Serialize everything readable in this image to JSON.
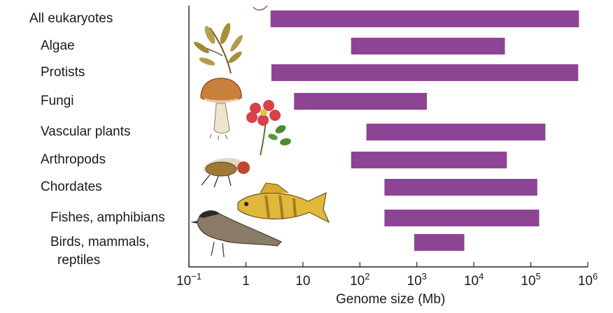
{
  "chart_data": {
    "type": "bar",
    "orientation": "horizontal-range",
    "xscale": "log",
    "xlabel": "Genome size (Mb)",
    "xlim": [
      0.1,
      1000000
    ],
    "grid": false,
    "bar_color": "#8e4494",
    "categories": [
      {
        "label": "All eukaryotes",
        "indent": 0,
        "range": [
          2.7,
          700000
        ]
      },
      {
        "label": "Algae",
        "indent": 1,
        "range": [
          70,
          35000
        ]
      },
      {
        "label": "Protists",
        "indent": 1,
        "range": [
          2.8,
          680000
        ]
      },
      {
        "label": "Fungi",
        "indent": 1,
        "range": [
          7,
          1500
        ]
      },
      {
        "label": "Vascular plants",
        "indent": 1,
        "range": [
          130,
          180000
        ]
      },
      {
        "label": "Arthropods",
        "indent": 1,
        "range": [
          70,
          38000
        ]
      },
      {
        "label": "Chordates",
        "indent": 1,
        "range": [
          270,
          130000
        ]
      },
      {
        "label": "Fishes, amphibians",
        "indent": 2,
        "range": [
          270,
          140000
        ]
      },
      {
        "label": "Birds, mammals,\nreptiles",
        "indent": 2,
        "range": [
          900,
          6800
        ]
      }
    ],
    "ticks": [
      {
        "value": 0.1,
        "base": "10",
        "exp": "−1"
      },
      {
        "value": 1,
        "base": "1",
        "exp": ""
      },
      {
        "value": 10,
        "base": "10",
        "exp": ""
      },
      {
        "value": 100,
        "base": "10",
        "exp": "2"
      },
      {
        "value": 1000,
        "base": "10",
        "exp": "3"
      },
      {
        "value": 10000,
        "base": "10",
        "exp": "4"
      },
      {
        "value": 100000,
        "base": "10",
        "exp": "5"
      },
      {
        "value": 1000000,
        "base": "10",
        "exp": "6"
      }
    ],
    "illustrations": [
      "seaweed-icon",
      "mushroom-icon",
      "rose-icon",
      "fly-icon",
      "fish-icon",
      "bird-icon"
    ]
  }
}
